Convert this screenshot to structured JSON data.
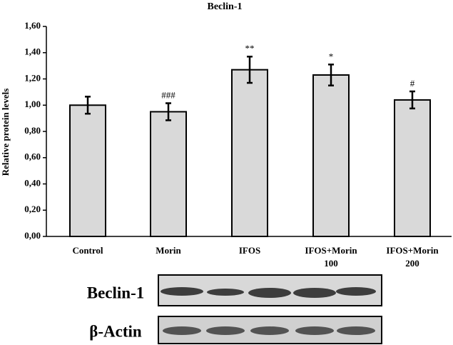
{
  "chart_data": {
    "type": "bar",
    "title": "Beclin-1",
    "y_label": "Relative protein levels",
    "categories": [
      "Control",
      "Morin",
      "IFOS",
      "IFOS+Morin 100",
      "IFOS+Morin 200"
    ],
    "values": [
      1.0,
      0.95,
      1.27,
      1.23,
      1.04
    ],
    "errors": [
      0.065,
      0.065,
      0.1,
      0.08,
      0.065
    ],
    "annotations": [
      null,
      "###",
      "**",
      "*",
      "#"
    ],
    "color": "#d9d9d9",
    "ylim": [
      0,
      1.6
    ],
    "yticks": [
      {
        "value": 0,
        "label": "0,00"
      },
      {
        "value": 0.2,
        "label": "0,20"
      },
      {
        "value": 0.4,
        "label": "0,40"
      },
      {
        "value": 0.6,
        "label": "0,60"
      },
      {
        "value": 0.8,
        "label": "0,80"
      },
      {
        "value": 1.0,
        "label": "1,00"
      },
      {
        "value": 1.2,
        "label": "1,20"
      },
      {
        "value": 1.4,
        "label": "1,40"
      },
      {
        "value": 1.6,
        "label": "1,60"
      }
    ],
    "grid": false,
    "blot_labels": [
      "Beclin-1",
      "β-Actin"
    ]
  }
}
